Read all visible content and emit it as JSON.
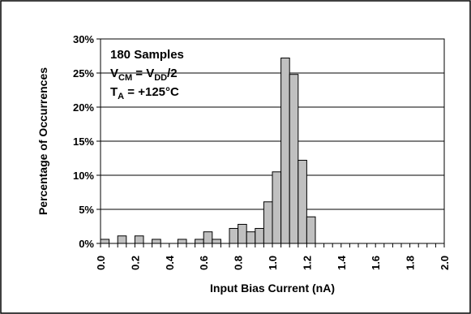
{
  "chart_data": {
    "type": "bar",
    "xlabel": "Input Bias Current (nA)",
    "ylabel": "Percentage of Occurrences",
    "xlim": [
      0.0,
      2.0
    ],
    "ylim": [
      0,
      30
    ],
    "x_ticks": [
      "0.0",
      "0.2",
      "0.4",
      "0.6",
      "0.8",
      "1.0",
      "1.2",
      "1.4",
      "1.6",
      "1.8",
      "2.0"
    ],
    "y_ticks": [
      "0%",
      "5%",
      "10%",
      "15%",
      "20%",
      "25%",
      "30%"
    ],
    "bin_width": 0.05,
    "grid": "horizontal",
    "annotations": {
      "samples": "180 Samples",
      "vcm_main": "V",
      "vcm_sub": "CM",
      "vcm_mid": " = V",
      "vdd_sub": "DD",
      "vcm_end": "/2",
      "ta_main": "T",
      "ta_sub": "A",
      "ta_end": " = +125°C"
    },
    "x": [
      0.0,
      0.05,
      0.1,
      0.15,
      0.2,
      0.25,
      0.3,
      0.35,
      0.4,
      0.45,
      0.5,
      0.55,
      0.6,
      0.65,
      0.7,
      0.75,
      0.8,
      0.85,
      0.9,
      0.95,
      1.0,
      1.05,
      1.1,
      1.15,
      1.2,
      1.25,
      1.3,
      1.35,
      1.4,
      1.45,
      1.5,
      1.55,
      1.6,
      1.65,
      1.7,
      1.75,
      1.8,
      1.85,
      1.9,
      1.95
    ],
    "values": [
      0.6,
      0,
      1.1,
      0,
      1.1,
      0,
      0.6,
      0,
      0,
      0.6,
      0,
      0.6,
      1.7,
      0.6,
      0,
      2.2,
      2.8,
      1.7,
      2.2,
      6.1,
      10.5,
      27.2,
      24.8,
      12.2,
      3.9,
      0,
      0,
      0,
      0,
      0,
      0,
      0,
      0,
      0,
      0,
      0,
      0,
      0,
      0,
      0
    ]
  }
}
